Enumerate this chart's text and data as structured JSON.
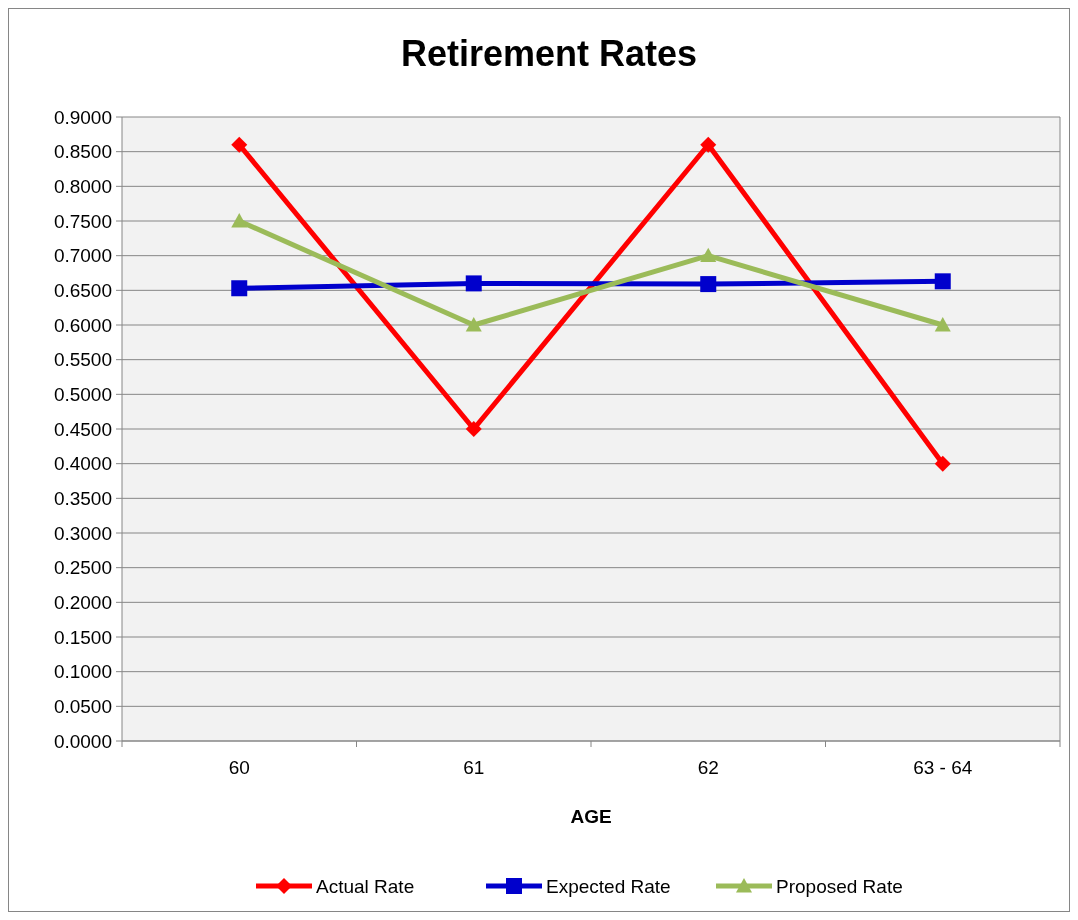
{
  "chart_data": {
    "type": "line",
    "title": "Retirement Rates",
    "xlabel": "AGE",
    "categories": [
      "60",
      "61",
      "62",
      "63 - 64"
    ],
    "series": [
      {
        "name": "Actual Rate",
        "color": "#ff0000",
        "values": [
          0.86,
          0.45,
          0.86,
          0.4
        ],
        "marker": "diamond"
      },
      {
        "name": "Expected Rate",
        "color": "#0000cc",
        "values": [
          0.653,
          0.66,
          0.659,
          0.663
        ],
        "marker": "square"
      },
      {
        "name": "Proposed Rate",
        "color": "#9bbb59",
        "values": [
          0.75,
          0.6,
          0.7,
          0.6
        ],
        "marker": "triangle"
      }
    ],
    "ylim": [
      0,
      0.9
    ],
    "yticks": [
      {
        "value": 0,
        "label": "0.0000"
      },
      {
        "value": 0.05,
        "label": "0.0500"
      },
      {
        "value": 0.1,
        "label": "0.1000"
      },
      {
        "value": 0.15,
        "label": "0.1500"
      },
      {
        "value": 0.2,
        "label": "0.2000"
      },
      {
        "value": 0.25,
        "label": "0.2500"
      },
      {
        "value": 0.3,
        "label": "0.3000"
      },
      {
        "value": 0.35,
        "label": "0.3500"
      },
      {
        "value": 0.4,
        "label": "0.4000"
      },
      {
        "value": 0.45,
        "label": "0.4500"
      },
      {
        "value": 0.5,
        "label": "0.5000"
      },
      {
        "value": 0.55,
        "label": "0.5500"
      },
      {
        "value": 0.6,
        "label": "0.6000"
      },
      {
        "value": 0.65,
        "label": "0.6500"
      },
      {
        "value": 0.7,
        "label": "0.7000"
      },
      {
        "value": 0.75,
        "label": "0.7500"
      },
      {
        "value": 0.8,
        "label": "0.8000"
      },
      {
        "value": 0.85,
        "label": "0.8500"
      },
      {
        "value": 0.9,
        "label": "0.9000"
      }
    ],
    "grid": "y",
    "legend": "bottom"
  }
}
